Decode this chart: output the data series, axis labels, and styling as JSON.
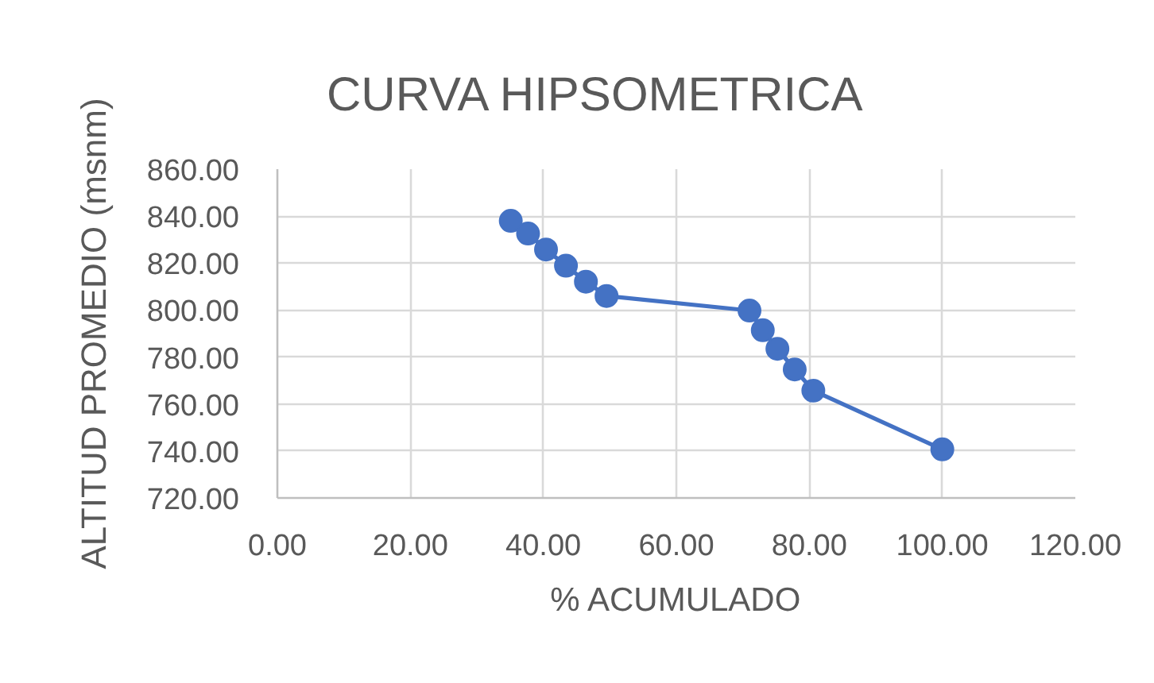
{
  "chart_data": {
    "type": "line",
    "title": "CURVA HIPSOMETRICA",
    "xlabel": "% ACUMULADO",
    "ylabel": "ALTITUD PROMEDIO (msnm)",
    "x": [
      35.1,
      37.7,
      40.4,
      43.4,
      46.4,
      49.5,
      71.0,
      73.0,
      75.2,
      77.8,
      80.6,
      100.0
    ],
    "series": [
      {
        "color": "#4472c4",
        "values": [
          838.0,
          832.6,
          825.8,
          818.9,
          812.1,
          806.0,
          799.8,
          791.4,
          783.5,
          774.7,
          765.7,
          740.7
        ]
      }
    ],
    "xlim": [
      0,
      120
    ],
    "ylim": [
      720,
      860
    ],
    "xticks": [
      {
        "value": 0,
        "label": "0.00"
      },
      {
        "value": 20,
        "label": "20.00"
      },
      {
        "value": 40,
        "label": "40.00"
      },
      {
        "value": 60,
        "label": "60.00"
      },
      {
        "value": 80,
        "label": "80.00"
      },
      {
        "value": 100,
        "label": "100.00"
      },
      {
        "value": 120,
        "label": "120.00"
      }
    ],
    "yticks": [
      {
        "value": 720,
        "label": "720.00"
      },
      {
        "value": 740,
        "label": "740.00"
      },
      {
        "value": 760,
        "label": "760.00"
      },
      {
        "value": 780,
        "label": "780.00"
      },
      {
        "value": 800,
        "label": "800.00"
      },
      {
        "value": 820,
        "label": "820.00"
      },
      {
        "value": 840,
        "label": "840.00"
      },
      {
        "value": 860,
        "label": "860.00"
      }
    ],
    "grid": true,
    "marker": "circle",
    "line_style": "solid"
  }
}
